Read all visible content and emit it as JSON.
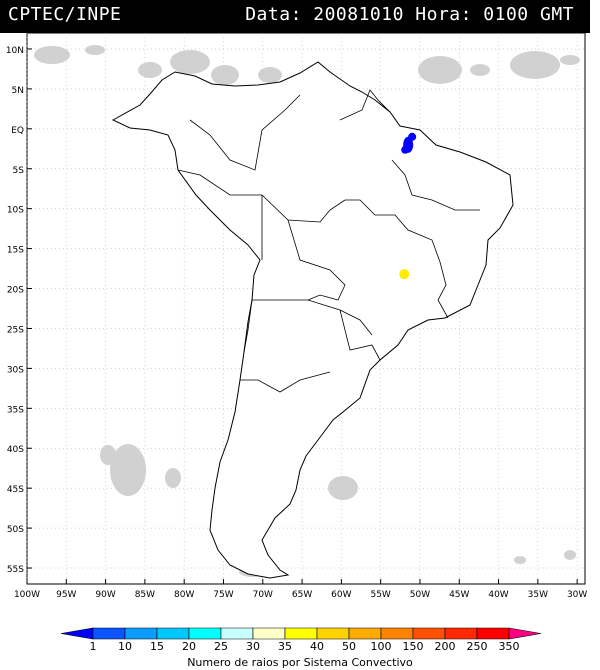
{
  "header": {
    "source": "CPTEC/INPE",
    "date_time": "Data: 20081010 Hora: 0100 GMT"
  },
  "map": {
    "lat_labels": [
      "10N",
      "5N",
      "EQ",
      "5S",
      "10S",
      "15S",
      "20S",
      "25S",
      "30S",
      "35S",
      "40S",
      "45S",
      "50S",
      "55S"
    ],
    "lon_labels": [
      "100W",
      "95W",
      "90W",
      "85W",
      "80W",
      "75W",
      "70W",
      "65W",
      "60W",
      "55W",
      "50W",
      "45W",
      "40W",
      "35W",
      "30W"
    ],
    "lightning_systems": [
      {
        "lon": -51.5,
        "lat": -2.0,
        "size": "large",
        "color": "#0000ff"
      },
      {
        "lon": -52.0,
        "lat": -18.2,
        "size": "small",
        "color": "#ffee00"
      }
    ]
  },
  "legend": {
    "title": "Numero de raios por Sistema Convectivo",
    "labels": [
      "1",
      "10",
      "15",
      "20",
      "25",
      "30",
      "35",
      "40",
      "50",
      "100",
      "150",
      "200",
      "250",
      "350"
    ],
    "colors": [
      "#0000ff",
      "#0a55ff",
      "#0a9cff",
      "#00c8ff",
      "#00ffff",
      "#c8ffff",
      "#ffffc8",
      "#ffff00",
      "#ffd200",
      "#ffaa00",
      "#ff8200",
      "#ff5000",
      "#ff2800",
      "#ff0000",
      "#ff0080"
    ]
  }
}
